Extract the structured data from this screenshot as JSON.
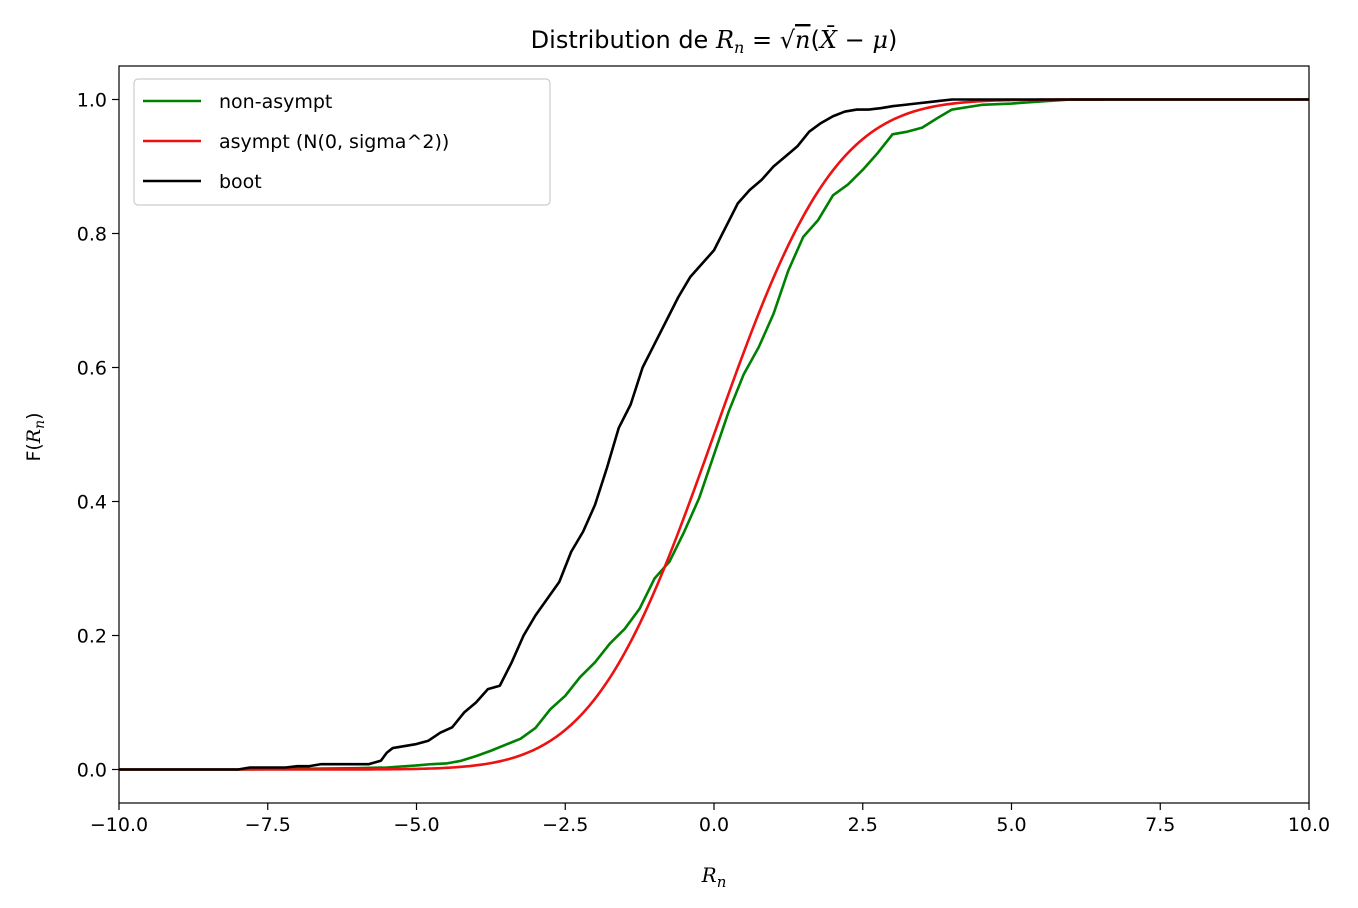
{
  "chart_data": {
    "type": "line",
    "title": "Distribution de R_n = √n(X̄ − μ)",
    "xlabel": "R_n",
    "ylabel": "F(R_n)",
    "xlim": [
      -10.0,
      10.0
    ],
    "ylim": [
      -0.05,
      1.05
    ],
    "xticks": [
      -10.0,
      -7.5,
      -5.0,
      -2.5,
      0.0,
      2.5,
      5.0,
      7.5,
      10.0
    ],
    "xtick_labels": [
      "−10.0",
      "−7.5",
      "−5.0",
      "−2.5",
      "0.0",
      "2.5",
      "5.0",
      "7.5",
      "10.0"
    ],
    "yticks": [
      0.0,
      0.2,
      0.4,
      0.6,
      0.8,
      1.0
    ],
    "ytick_labels": [
      "0.0",
      "0.2",
      "0.4",
      "0.6",
      "0.8",
      "1.0"
    ],
    "grid": false,
    "legend_position": "top-left",
    "series": [
      {
        "name": "non-asympt",
        "color": "#008000",
        "x": [
          -10.0,
          -8.0,
          -6.0,
          -5.5,
          -5.0,
          -4.75,
          -4.5,
          -4.25,
          -4.0,
          -3.75,
          -3.5,
          -3.25,
          -3.0,
          -2.75,
          -2.5,
          -2.25,
          -2.0,
          -1.75,
          -1.5,
          -1.25,
          -1.0,
          -0.75,
          -0.5,
          -0.25,
          0.0,
          0.25,
          0.5,
          0.75,
          1.0,
          1.25,
          1.5,
          1.75,
          2.0,
          2.25,
          2.5,
          2.75,
          3.0,
          3.25,
          3.5,
          3.75,
          4.0,
          4.5,
          5.0,
          5.5,
          6.0,
          10.0
        ],
        "y": [
          0.0,
          0.0,
          0.002,
          0.003,
          0.006,
          0.008,
          0.009,
          0.013,
          0.02,
          0.028,
          0.037,
          0.046,
          0.062,
          0.09,
          0.11,
          0.138,
          0.16,
          0.188,
          0.21,
          0.24,
          0.285,
          0.31,
          0.355,
          0.405,
          0.47,
          0.535,
          0.59,
          0.63,
          0.68,
          0.745,
          0.795,
          0.82,
          0.857,
          0.873,
          0.895,
          0.92,
          0.948,
          0.952,
          0.958,
          0.972,
          0.985,
          0.992,
          0.994,
          0.997,
          1.0,
          1.0
        ]
      },
      {
        "name": "asympt (N(0, sigma^2))",
        "color": "#ee1111",
        "dist": "normal",
        "mu": 0.0,
        "sigma": 1.6
      },
      {
        "name": "boot",
        "color": "#000000",
        "x": [
          -10.0,
          -8.0,
          -7.8,
          -7.2,
          -7.0,
          -6.8,
          -6.6,
          -6.4,
          -5.8,
          -5.6,
          -5.5,
          -5.4,
          -5.2,
          -5.0,
          -4.8,
          -4.6,
          -4.4,
          -4.2,
          -4.0,
          -3.8,
          -3.6,
          -3.4,
          -3.2,
          -3.0,
          -2.8,
          -2.6,
          -2.4,
          -2.2,
          -2.0,
          -1.8,
          -1.6,
          -1.4,
          -1.2,
          -1.0,
          -0.8,
          -0.6,
          -0.4,
          -0.2,
          0.0,
          0.2,
          0.4,
          0.6,
          0.8,
          1.0,
          1.2,
          1.4,
          1.6,
          1.8,
          2.0,
          2.2,
          2.4,
          2.6,
          2.8,
          3.0,
          3.2,
          3.4,
          3.6,
          3.8,
          4.0,
          4.5,
          4.8,
          5.5,
          10.0
        ],
        "y": [
          0.0,
          0.0,
          0.003,
          0.003,
          0.005,
          0.005,
          0.008,
          0.008,
          0.008,
          0.013,
          0.025,
          0.032,
          0.035,
          0.038,
          0.043,
          0.055,
          0.063,
          0.085,
          0.1,
          0.12,
          0.125,
          0.16,
          0.2,
          0.23,
          0.255,
          0.28,
          0.325,
          0.355,
          0.395,
          0.45,
          0.51,
          0.545,
          0.6,
          0.635,
          0.67,
          0.705,
          0.735,
          0.755,
          0.775,
          0.81,
          0.845,
          0.865,
          0.88,
          0.9,
          0.915,
          0.93,
          0.952,
          0.965,
          0.975,
          0.982,
          0.985,
          0.985,
          0.987,
          0.99,
          0.992,
          0.994,
          0.996,
          0.998,
          1.0,
          1.0,
          1.0,
          1.0,
          1.0
        ]
      }
    ]
  }
}
